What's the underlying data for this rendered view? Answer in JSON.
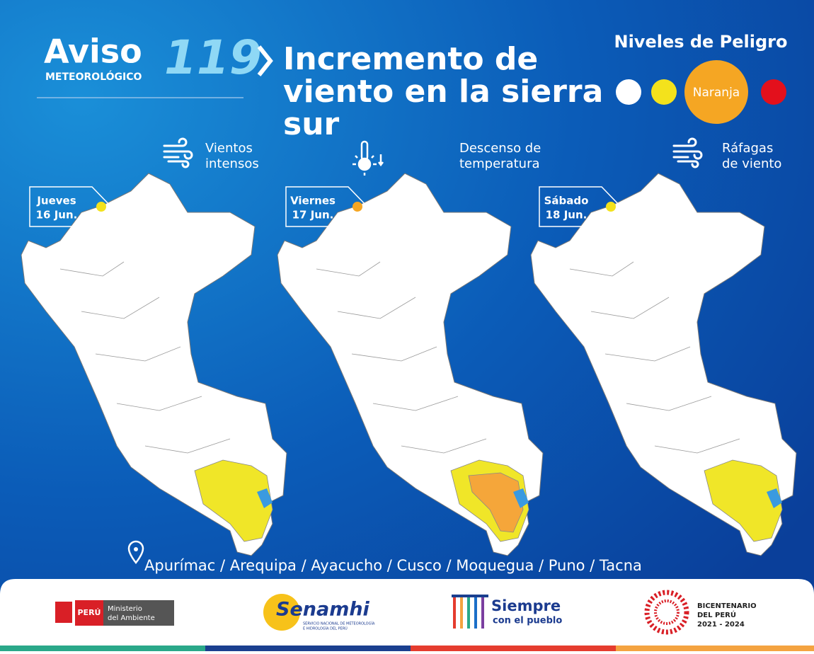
{
  "header": {
    "brand": "Aviso",
    "subtitle": "METEOROLÓGICO",
    "number": "119",
    "title_lines": [
      "Incremento de",
      "viento en la sierra",
      "sur"
    ]
  },
  "levels": {
    "title": "Niveles de Peligro",
    "active": "Naranja",
    "colors": [
      "#ffffff",
      "#f3e21c",
      "#f5a623",
      "#e3101c"
    ],
    "active_index": 2
  },
  "days": [
    {
      "day": "Jueves",
      "date": "16 Jun.",
      "dot_color": "#f3e21c",
      "hazard": [
        "Vientos",
        "intensos"
      ],
      "icon": "wind"
    },
    {
      "day": "Viernes",
      "date": "17 Jun.",
      "dot_color": "#f5a623",
      "hazard": [
        "Descenso de",
        "temperatura"
      ],
      "icon": "thermo"
    },
    {
      "day": "Sábado",
      "date": "18 Jun.",
      "dot_color": "#f3e21c",
      "hazard": [
        "Ráfagas",
        "de viento"
      ],
      "icon": "wind"
    }
  ],
  "regions": "Apurímac / Arequipa / Ayacucho / Cusco  / Moquegua / Puno / Tacna",
  "footer": {
    "peru": "PERÚ",
    "ministry": [
      "Ministerio",
      "del Ambiente"
    ],
    "senamhi": "Senamhi",
    "senamhi_sub": [
      "SERVICIO NACIONAL DE METEOROLOGÍA",
      "E HIDROLOGÍA DEL PERÚ"
    ],
    "slogan": [
      "Siempre",
      "con el pueblo"
    ],
    "bicentenario": [
      "BICENTENARIO",
      "DEL PERÚ",
      "2021 - 2024"
    ]
  }
}
